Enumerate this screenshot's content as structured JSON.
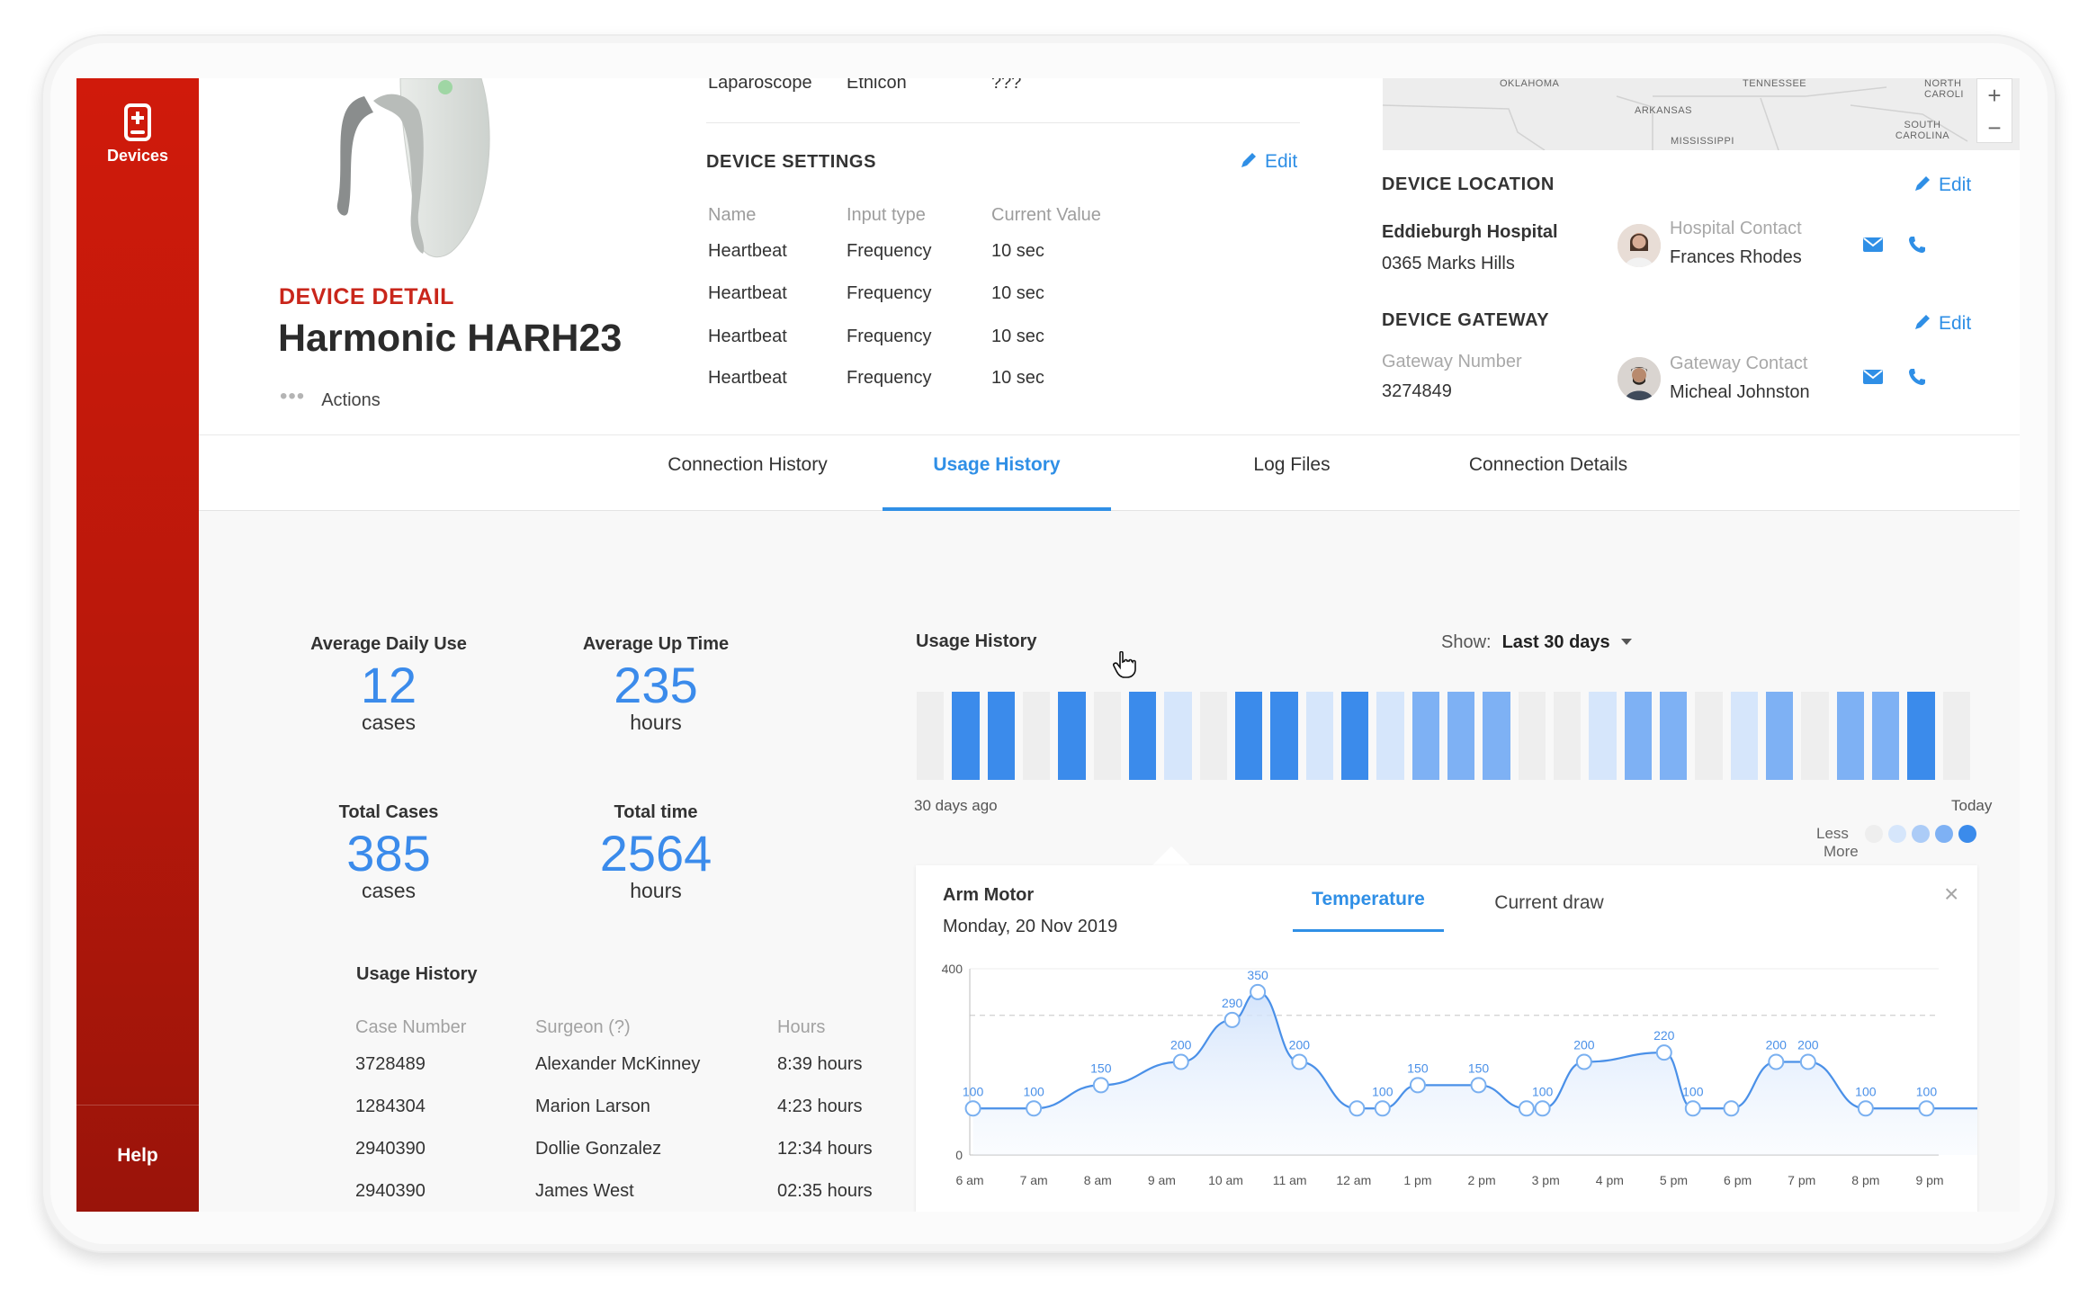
{
  "sidebar": {
    "devices_label": "Devices",
    "help_label": "Help"
  },
  "detail": {
    "kicker": "DEVICE DETAIL",
    "title": "Harmonic HARH23",
    "actions_label": "Actions",
    "cut_row": {
      "name": "Laparoscope",
      "type": "Ethicon",
      "value": "???"
    }
  },
  "settings": {
    "heading": "DEVICE SETTINGS",
    "edit": "Edit",
    "columns": [
      "Name",
      "Input type",
      "Current Value"
    ],
    "rows": [
      [
        "Heartbeat",
        "Frequency",
        "10 sec"
      ],
      [
        "Heartbeat",
        "Frequency",
        "10 sec"
      ],
      [
        "Heartbeat",
        "Frequency",
        "10 sec"
      ],
      [
        "Heartbeat",
        "Frequency",
        "10 sec"
      ]
    ]
  },
  "map": {
    "labels": [
      "OKLAHOMA",
      "TENNESSEE",
      "ARKANSAS",
      "NORTH CAROLI",
      "MISSISSIPPI",
      "SOUTH CAROLINA"
    ],
    "zoom_in": "+",
    "zoom_out": "−"
  },
  "location": {
    "heading": "DEVICE LOCATION",
    "edit": "Edit",
    "hospital": "Eddieburgh Hospital",
    "address": "0365 Marks Hills",
    "contact_label": "Hospital Contact",
    "contact_name": "Frances Rhodes"
  },
  "gateway": {
    "heading": "DEVICE GATEWAY",
    "edit": "Edit",
    "number_label": "Gateway Number",
    "number": "3274849",
    "contact_label": "Gateway Contact",
    "contact_name": "Micheal Johnston"
  },
  "tabs": [
    "Connection History",
    "Usage History",
    "Log Files",
    "Connection Details"
  ],
  "active_tab": "Usage History",
  "stats": [
    {
      "label": "Average Daily Use",
      "value": "12",
      "unit": "cases"
    },
    {
      "label": "Average Up Time",
      "value": "235",
      "unit": "hours"
    },
    {
      "label": "Total Cases",
      "value": "385",
      "unit": "cases"
    },
    {
      "label": "Total time",
      "value": "2564",
      "unit": "hours"
    }
  ],
  "usage_table": {
    "title": "Usage History",
    "columns": [
      "Case Number",
      "Surgeon (?)",
      "Hours"
    ],
    "rows": [
      [
        "3728489",
        "Alexander McKinney",
        "8:39 hours"
      ],
      [
        "1284304",
        "Marion Larson",
        "4:23 hours"
      ],
      [
        "2940390",
        "Dollie Gonzalez",
        "12:34 hours"
      ],
      [
        "2940390",
        "James West",
        "02:35 hours"
      ]
    ]
  },
  "usage_history": {
    "title": "Usage History",
    "show_label": "Show:",
    "show_value": "Last 30 days",
    "start_label": "30 days ago",
    "end_label": "Today",
    "legend_less": "Less",
    "legend_more": "More",
    "levels": [
      0,
      4,
      4,
      0,
      4,
      0,
      4,
      1,
      0,
      4,
      4,
      1,
      4,
      1,
      3,
      3,
      3,
      0,
      0,
      1,
      3,
      3,
      0,
      1,
      3,
      0,
      3,
      3,
      4,
      0
    ],
    "level_colors": [
      "#eeeeee",
      "#d6e6fb",
      "#acccf7",
      "#7eb1f4",
      "#3b8beb"
    ]
  },
  "detail_card": {
    "title": "Arm Motor",
    "date": "Monday, 20 Nov 2019",
    "tabs": [
      "Temperature",
      "Current draw"
    ],
    "active_tab": "Temperature",
    "close": "×"
  },
  "chart_data": {
    "type": "line",
    "title": "",
    "xlabel": "",
    "ylabel": "",
    "ylim": [
      0,
      400
    ],
    "y_ticks": [
      0,
      400
    ],
    "reference_line": 300,
    "x_ticks": [
      "6 am",
      "7 am",
      "8 am",
      "9 am",
      "10 am",
      "11 am",
      "12 am",
      "1 pm",
      "2 pm",
      "3 pm",
      "4 pm",
      "5 pm",
      "6 pm",
      "7 pm",
      "8 pm",
      "9 pm"
    ],
    "series": [
      {
        "x": [
          0.05,
          1.0,
          2.05,
          3.3,
          4.1,
          4.5,
          5.15,
          6.05,
          6.45,
          7.0,
          7.95,
          8.7,
          8.95,
          9.6,
          10.85,
          11.3,
          11.9,
          12.6,
          13.1,
          14.0,
          14.95,
          15.9
        ],
        "values": [
          100,
          100,
          150,
          200,
          290,
          350,
          200,
          100,
          100,
          150,
          150,
          100,
          100,
          200,
          220,
          100,
          100,
          200,
          200,
          100,
          100,
          100
        ],
        "labeled": [
          true,
          true,
          true,
          true,
          true,
          true,
          true,
          false,
          true,
          true,
          true,
          false,
          true,
          true,
          true,
          true,
          false,
          true,
          true,
          true,
          true,
          true
        ]
      }
    ]
  }
}
